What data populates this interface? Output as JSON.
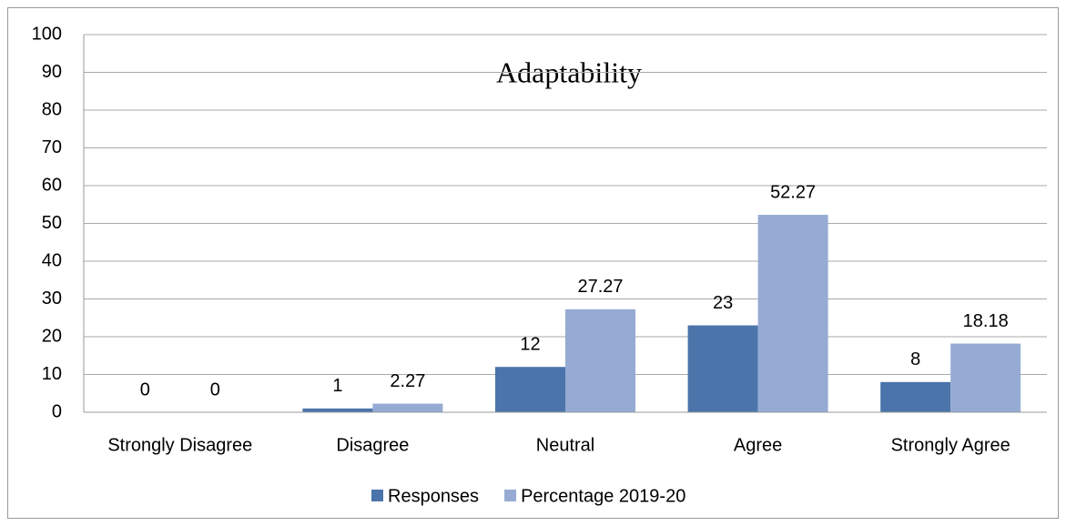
{
  "chart_data": {
    "type": "bar",
    "title": "Adaptability",
    "categories": [
      "Strongly Disagree",
      "Disagree",
      "Neutral",
      "Agree",
      "Strongly Agree"
    ],
    "series": [
      {
        "name": "Responses",
        "color": "#4a74aa",
        "values": [
          0,
          1,
          12,
          23,
          8
        ]
      },
      {
        "name": "Percentage 2019-20",
        "color": "#95abd3",
        "values": [
          0,
          2.27,
          27.27,
          52.27,
          18.18
        ]
      }
    ],
    "ylim": [
      0,
      100
    ],
    "yticks": [
      0,
      10,
      20,
      30,
      40,
      50,
      60,
      70,
      80,
      90,
      100
    ],
    "grid": true,
    "legend": "bottom"
  }
}
